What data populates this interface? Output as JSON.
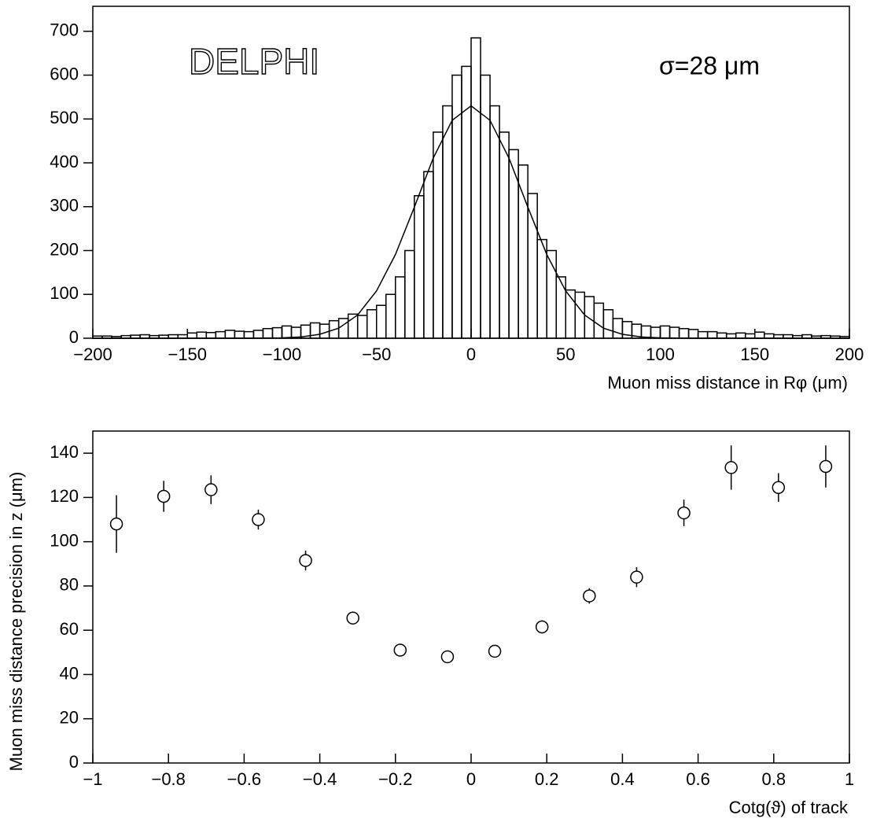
{
  "chart_data": [
    {
      "type": "histogram",
      "annotations": [
        "DELPHI",
        "σ=28 μm"
      ],
      "xlabel": "Muon miss distance in Rφ (μm)",
      "bins": [
        -200,
        -195,
        -190,
        -185,
        -180,
        -175,
        -170,
        -165,
        -160,
        -155,
        -150,
        -145,
        -140,
        -135,
        -130,
        -125,
        -120,
        -115,
        -110,
        -105,
        -100,
        -95,
        -90,
        -85,
        -80,
        -75,
        -70,
        -65,
        -60,
        -55,
        -50,
        -45,
        -40,
        -35,
        -30,
        -25,
        -20,
        -15,
        -10,
        -5,
        0,
        5,
        10,
        15,
        20,
        25,
        30,
        35,
        40,
        45,
        50,
        55,
        60,
        65,
        70,
        75,
        80,
        85,
        90,
        95,
        100,
        105,
        110,
        115,
        120,
        125,
        130,
        135,
        140,
        145,
        150,
        155,
        160,
        165,
        170,
        175,
        180,
        185,
        190,
        195,
        200
      ],
      "counts": [
        5,
        5,
        4,
        6,
        7,
        8,
        6,
        7,
        8,
        8,
        12,
        14,
        13,
        15,
        18,
        16,
        15,
        18,
        22,
        24,
        28,
        25,
        30,
        35,
        32,
        40,
        45,
        55,
        52,
        65,
        75,
        100,
        140,
        200,
        325,
        380,
        470,
        530,
        600,
        620,
        685,
        600,
        530,
        470,
        430,
        395,
        330,
        225,
        200,
        140,
        110,
        105,
        95,
        80,
        65,
        45,
        38,
        32,
        28,
        25,
        28,
        25,
        22,
        20,
        15,
        15,
        12,
        10,
        12,
        10,
        14,
        10,
        8,
        8,
        6,
        8,
        5,
        6,
        5,
        4
      ],
      "fit": {
        "x": [
          -200,
          -120,
          -100,
          -90,
          -80,
          -70,
          -60,
          -50,
          -40,
          -30,
          -20,
          -10,
          0,
          10,
          20,
          30,
          40,
          50,
          60,
          70,
          80,
          90,
          100,
          120,
          200
        ],
        "values": [
          0,
          0,
          1,
          3,
          9,
          23,
          53,
          108,
          191,
          299,
          411,
          497,
          530,
          497,
          411,
          299,
          191,
          108,
          53,
          23,
          9,
          3,
          1,
          0,
          0
        ]
      },
      "color": "#000000",
      "xlim": [
        -200,
        200
      ],
      "xticks": [
        {
          "value": -200,
          "label": "−200"
        },
        {
          "value": -150,
          "label": "−150"
        },
        {
          "value": -100,
          "label": "−100"
        },
        {
          "value": -50,
          "label": "−50"
        },
        0,
        50,
        100,
        150,
        200
      ],
      "ylim": [
        0,
        757
      ],
      "yticks": [
        0,
        100,
        200,
        300,
        400,
        500,
        600,
        700
      ]
    },
    {
      "type": "errorbar",
      "xlabel": "Cotg(ϑ) of track",
      "ylabel": "Muon miss distance precision in z (μm)",
      "x": [
        -0.9375,
        -0.8125,
        -0.6875,
        -0.5625,
        -0.4375,
        -0.3125,
        -0.1875,
        -0.0625,
        0.0625,
        0.1875,
        0.3125,
        0.4375,
        0.5625,
        0.6875,
        0.8125,
        0.9375
      ],
      "values": [
        108,
        120.5,
        123.5,
        110,
        91.5,
        65.5,
        51,
        48,
        50.5,
        61.5,
        75.5,
        84,
        113,
        133.5,
        124.5,
        134
      ],
      "errors": [
        13,
        7,
        6.5,
        4.5,
        4.5,
        2,
        2,
        1.5,
        1.5,
        3,
        3.5,
        4.5,
        6,
        10,
        6.5,
        9.5
      ],
      "color": "#000000",
      "xlim": [
        -1,
        1
      ],
      "xticks": [
        {
          "value": -1,
          "label": "−1"
        },
        {
          "value": -0.8,
          "label": "−0.8"
        },
        {
          "value": -0.6,
          "label": "−0.6"
        },
        {
          "value": -0.4,
          "label": "−0.4"
        },
        {
          "value": -0.2,
          "label": "−0.2"
        },
        0,
        0.2,
        0.4,
        0.6,
        0.8,
        1
      ],
      "ylim": [
        0,
        150
      ],
      "yticks": [
        0,
        20,
        40,
        60,
        80,
        100,
        120,
        140
      ]
    }
  ]
}
